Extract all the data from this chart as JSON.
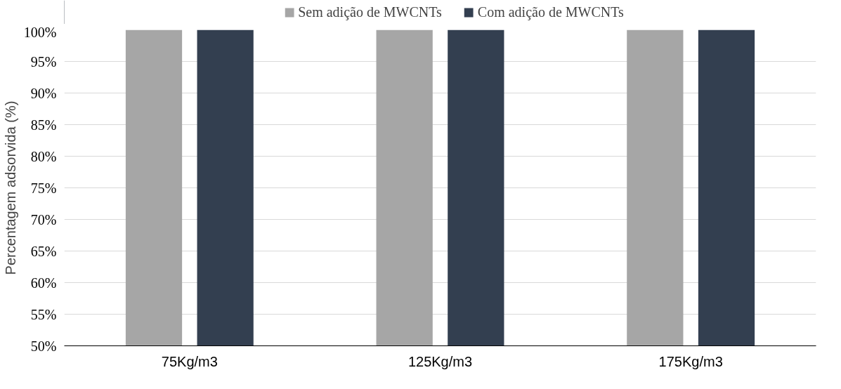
{
  "chart_data": {
    "type": "bar",
    "ylabel": "Percentagem adsorvida (%)",
    "categories": [
      "75Kg/m3",
      "125Kg/m3",
      "175Kg/m3"
    ],
    "series": [
      {
        "name": "Sem adição de MWCNTs",
        "color": "#a6a6a6",
        "values": [
          100,
          100,
          100
        ]
      },
      {
        "name": "Com adição de MWCNTs",
        "color": "#333f50",
        "values": [
          100,
          100,
          100
        ]
      }
    ],
    "ylim": [
      50,
      100
    ],
    "yticks": [
      {
        "value": 50,
        "label": "50%"
      },
      {
        "value": 55,
        "label": "55%"
      },
      {
        "value": 60,
        "label": "60%"
      },
      {
        "value": 65,
        "label": "65%"
      },
      {
        "value": 70,
        "label": "70%"
      },
      {
        "value": 75,
        "label": "75%"
      },
      {
        "value": 80,
        "label": "80%"
      },
      {
        "value": 85,
        "label": "85%"
      },
      {
        "value": 90,
        "label": "90%"
      },
      {
        "value": 95,
        "label": "95%"
      },
      {
        "value": 100,
        "label": "100%"
      }
    ],
    "grid": "y",
    "legend": "top"
  }
}
